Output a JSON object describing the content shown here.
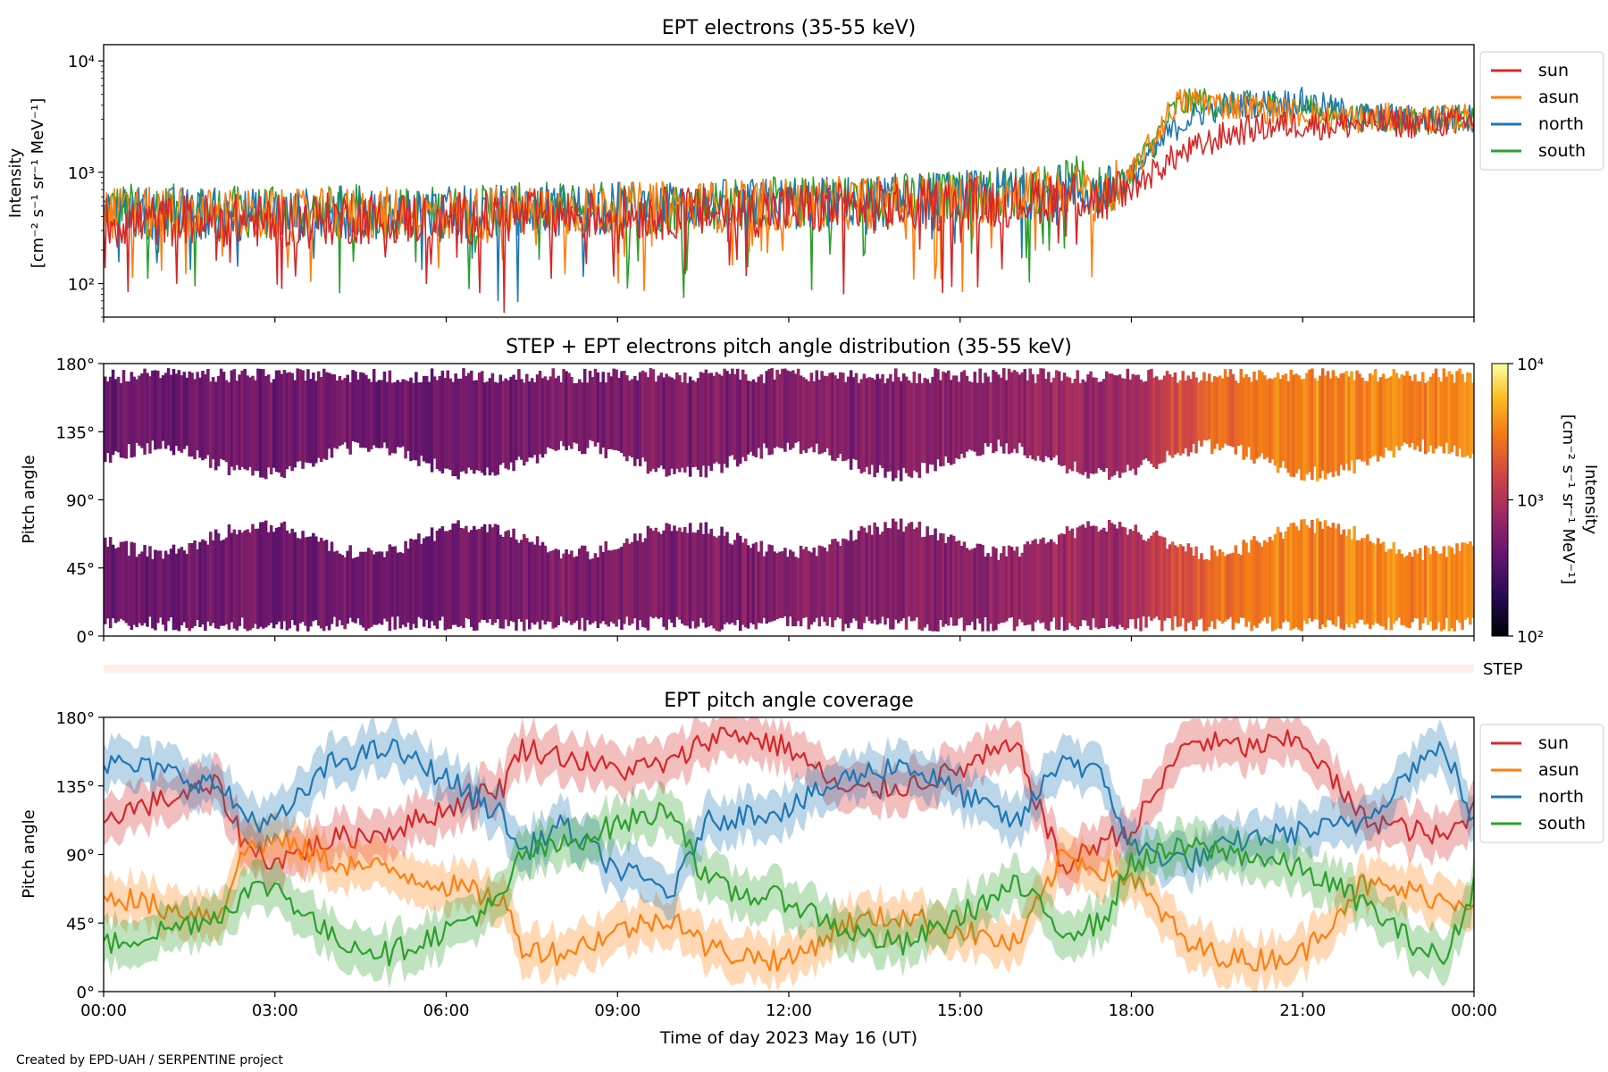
{
  "figure": {
    "footer": "Created by EPD-UAH / SERPENTINE project",
    "time_axis": {
      "label": "Time of day 2023 May 16 (UT)",
      "ticks_hours": [
        0,
        3,
        6,
        9,
        12,
        15,
        18,
        21,
        24
      ],
      "tick_labels": [
        "00:00",
        "03:00",
        "06:00",
        "09:00",
        "12:00",
        "15:00",
        "18:00",
        "21:00",
        "00:00"
      ],
      "range_hours": [
        0,
        24
      ]
    }
  },
  "colors": {
    "sun": "#d62728",
    "asun": "#ff7f0e",
    "north": "#1f77b4",
    "south": "#2ca02c",
    "step_strip": "#fdeee8",
    "colormap": "inferno"
  },
  "chart_data": [
    {
      "id": "intensity",
      "type": "line",
      "title": "EPT electrons (35-55 keV)",
      "ylabel": "Intensity",
      "ylabel_units": "[cm⁻² s⁻¹ sr⁻¹ MeV⁻¹]",
      "yscale": "log",
      "ylim": [
        50,
        14000
      ],
      "yticks": [
        100,
        1000,
        10000
      ],
      "ytick_labels": [
        "10²",
        "10³",
        "10⁴"
      ],
      "x_hours": [
        0,
        1.5,
        3,
        4.5,
        6,
        7.5,
        9,
        10.5,
        12,
        13.5,
        15,
        16,
        17,
        17.5,
        18,
        18.4,
        18.8,
        19.2,
        19.6,
        20,
        20.5,
        21,
        21.5,
        22,
        22.5,
        23,
        23.5,
        24
      ],
      "legend": "upper right (outside)",
      "series": [
        {
          "name": "sun",
          "values": [
            350,
            380,
            360,
            390,
            380,
            410,
            420,
            440,
            460,
            480,
            520,
            560,
            650,
            560,
            700,
            1000,
            1400,
            1700,
            2100,
            2400,
            2600,
            2700,
            2600,
            2700,
            2800,
            2700,
            2800,
            2900
          ]
        },
        {
          "name": "asun",
          "values": [
            430,
            420,
            400,
            430,
            420,
            450,
            470,
            490,
            510,
            540,
            580,
            640,
            700,
            600,
            900,
            1900,
            4200,
            4500,
            4000,
            3900,
            3600,
            3400,
            3100,
            3000,
            3100,
            3000,
            3000,
            3100
          ]
        },
        {
          "name": "north",
          "values": [
            440,
            430,
            410,
            440,
            430,
            460,
            480,
            500,
            520,
            550,
            600,
            650,
            700,
            620,
            900,
            1500,
            2600,
            3400,
            3900,
            4100,
            4200,
            4300,
            3700,
            3200,
            3100,
            3000,
            3000,
            3100
          ]
        },
        {
          "name": "south",
          "values": [
            470,
            450,
            430,
            450,
            440,
            470,
            490,
            510,
            530,
            560,
            610,
            680,
            820,
            640,
            950,
            1800,
            3900,
            4400,
            3900,
            4000,
            4000,
            3800,
            3300,
            3100,
            3000,
            2900,
            3000,
            3000
          ]
        }
      ]
    },
    {
      "id": "pad",
      "type": "heatmap",
      "title": "STEP + EPT electrons pitch angle distribution (35-55 keV)",
      "ylabel": "Pitch angle",
      "ylim": [
        0,
        180
      ],
      "yticks": [
        0,
        45,
        90,
        135,
        180
      ],
      "ytick_labels": [
        "0°",
        "45°",
        "90°",
        "135°",
        "180°"
      ],
      "colorbar": {
        "label": "Intensity",
        "units": "[cm⁻² s⁻¹ sr⁻¹ MeV⁻¹]",
        "scale": "log",
        "range": [
          100,
          10000
        ],
        "ticks": [
          100,
          1000,
          10000
        ],
        "tick_labels": [
          "10²",
          "10³",
          "10⁴"
        ]
      },
      "step_label": "STEP"
    },
    {
      "id": "coverage",
      "type": "line",
      "title": "EPT pitch angle coverage",
      "ylabel": "Pitch angle",
      "ylim": [
        0,
        180
      ],
      "yticks": [
        0,
        45,
        90,
        135,
        180
      ],
      "ytick_labels": [
        "0°",
        "45°",
        "90°",
        "135°",
        "180°"
      ],
      "band_halfwidth_deg": 15,
      "legend": "upper right (outside)",
      "x_hours": [
        0,
        1,
        2,
        2.5,
        3,
        4,
        5,
        6,
        7,
        7.3,
        8,
        9,
        10,
        10.5,
        11,
        12,
        13,
        14,
        15,
        15.5,
        16,
        16.8,
        17.5,
        18,
        19,
        20,
        21,
        22,
        23,
        23.5,
        24
      ],
      "series": [
        {
          "name": "sun",
          "values": [
            115,
            125,
            135,
            95,
            85,
            100,
            105,
            120,
            135,
            160,
            155,
            145,
            150,
            165,
            170,
            160,
            130,
            135,
            145,
            155,
            160,
            80,
            100,
            105,
            165,
            160,
            165,
            115,
            105,
            100,
            120
          ]
        },
        {
          "name": "asun",
          "values": [
            65,
            55,
            50,
            95,
            100,
            85,
            80,
            70,
            60,
            30,
            25,
            40,
            50,
            30,
            25,
            20,
            45,
            50,
            40,
            35,
            30,
            90,
            80,
            75,
            30,
            20,
            25,
            70,
            65,
            60,
            60
          ]
        },
        {
          "name": "north",
          "values": [
            150,
            145,
            135,
            115,
            110,
            150,
            160,
            140,
            115,
            90,
            110,
            80,
            65,
            110,
            115,
            120,
            140,
            150,
            130,
            120,
            110,
            155,
            140,
            95,
            85,
            100,
            105,
            110,
            150,
            160,
            110
          ]
        },
        {
          "name": "south",
          "values": [
            30,
            40,
            50,
            65,
            70,
            35,
            25,
            40,
            60,
            90,
            95,
            110,
            120,
            75,
            65,
            60,
            40,
            30,
            50,
            60,
            70,
            40,
            45,
            85,
            95,
            90,
            80,
            60,
            30,
            20,
            70
          ]
        }
      ]
    }
  ]
}
